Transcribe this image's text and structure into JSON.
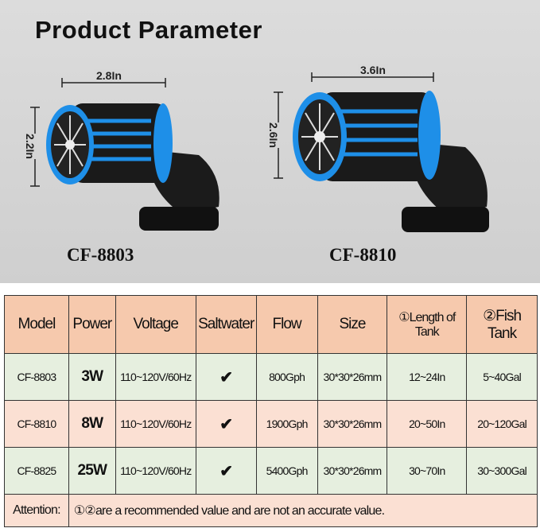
{
  "header": {
    "title": "Product Parameter"
  },
  "products": [
    {
      "model": "CF-8803",
      "width": "2.8In",
      "height": "2.2In"
    },
    {
      "model": "CF-8810",
      "width": "3.6In",
      "height": "2.6In"
    }
  ],
  "table": {
    "columns": [
      "Model",
      "Power",
      "Voltage",
      "Saltwater",
      "Flow",
      "Size",
      "①Length of Tank",
      "②Fish Tank"
    ],
    "rows": [
      [
        "CF-8803",
        "3W",
        "110~120V/60Hz",
        "✔",
        "800Gph",
        "30*30*26mm",
        "12~24In",
        "5~40Gal"
      ],
      [
        "CF-8810",
        "8W",
        "110~120V/60Hz",
        "✔",
        "1900Gph",
        "30*30*26mm",
        "20~50In",
        "20~120Gal"
      ],
      [
        "CF-8825",
        "25W",
        "110~120V/60Hz",
        "✔",
        "5400Gph",
        "30*30*26mm",
        "30~70In",
        "30~300Gal"
      ]
    ],
    "attention_label": "Attention:",
    "attention_text": "①②are a recommended value and are not an accurate value."
  },
  "colors": {
    "header_bg": "#f6c9ad",
    "green_row": "#e6efdf",
    "pink_row": "#fbe0d3",
    "pump_ring": "#1e8fe8"
  }
}
